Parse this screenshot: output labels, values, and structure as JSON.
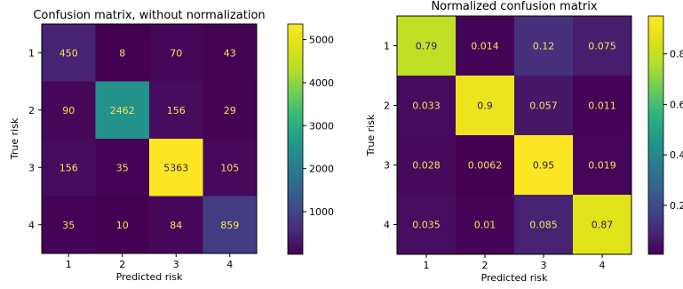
{
  "chart_data": [
    {
      "type": "heatmap",
      "title": "Confusion matrix, without normalization",
      "xlabel": "Predicted risk",
      "ylabel": "True risk",
      "x_categories": [
        "1",
        "2",
        "3",
        "4"
      ],
      "y_categories": [
        "1",
        "2",
        "3",
        "4"
      ],
      "values": [
        [
          450,
          8,
          70,
          43
        ],
        [
          90,
          2462,
          156,
          29
        ],
        [
          156,
          35,
          5363,
          105
        ],
        [
          35,
          10,
          84,
          859
        ]
      ],
      "value_labels": [
        [
          "450",
          "8",
          "70",
          "43"
        ],
        [
          "90",
          "2462",
          "156",
          "29"
        ],
        [
          "156",
          "35",
          "5363",
          "105"
        ],
        [
          "35",
          "10",
          "84",
          "859"
        ]
      ],
      "colormap": "viridis",
      "colorbar": {
        "range": [
          8,
          5363
        ],
        "ticks": [
          1000,
          2000,
          3000,
          4000,
          5000
        ],
        "tick_labels": [
          "1000",
          "2000",
          "3000",
          "4000",
          "5000"
        ]
      },
      "grid": false,
      "legend": "none"
    },
    {
      "type": "heatmap",
      "title": "Normalized confusion matrix",
      "xlabel": "Predicted risk",
      "ylabel": "True risk",
      "x_categories": [
        "1",
        "2",
        "3",
        "4"
      ],
      "y_categories": [
        "1",
        "2",
        "3",
        "4"
      ],
      "values": [
        [
          0.79,
          0.014,
          0.12,
          0.075
        ],
        [
          0.033,
          0.9,
          0.057,
          0.011
        ],
        [
          0.028,
          0.0062,
          0.95,
          0.019
        ],
        [
          0.035,
          0.01,
          0.085,
          0.87
        ]
      ],
      "value_labels": [
        [
          "0.79",
          "0.014",
          "0.12",
          "0.075"
        ],
        [
          "0.033",
          "0.9",
          "0.057",
          "0.011"
        ],
        [
          "0.028",
          "0.0062",
          "0.95",
          "0.019"
        ],
        [
          "0.035",
          "0.01",
          "0.085",
          "0.87"
        ]
      ],
      "colormap": "viridis",
      "colorbar": {
        "range": [
          0.0062,
          0.95
        ],
        "ticks": [
          0.2,
          0.4,
          0.6,
          0.8
        ],
        "tick_labels": [
          "0.2",
          "0.4",
          "0.6",
          "0.8"
        ]
      },
      "grid": false,
      "legend": "none"
    }
  ]
}
